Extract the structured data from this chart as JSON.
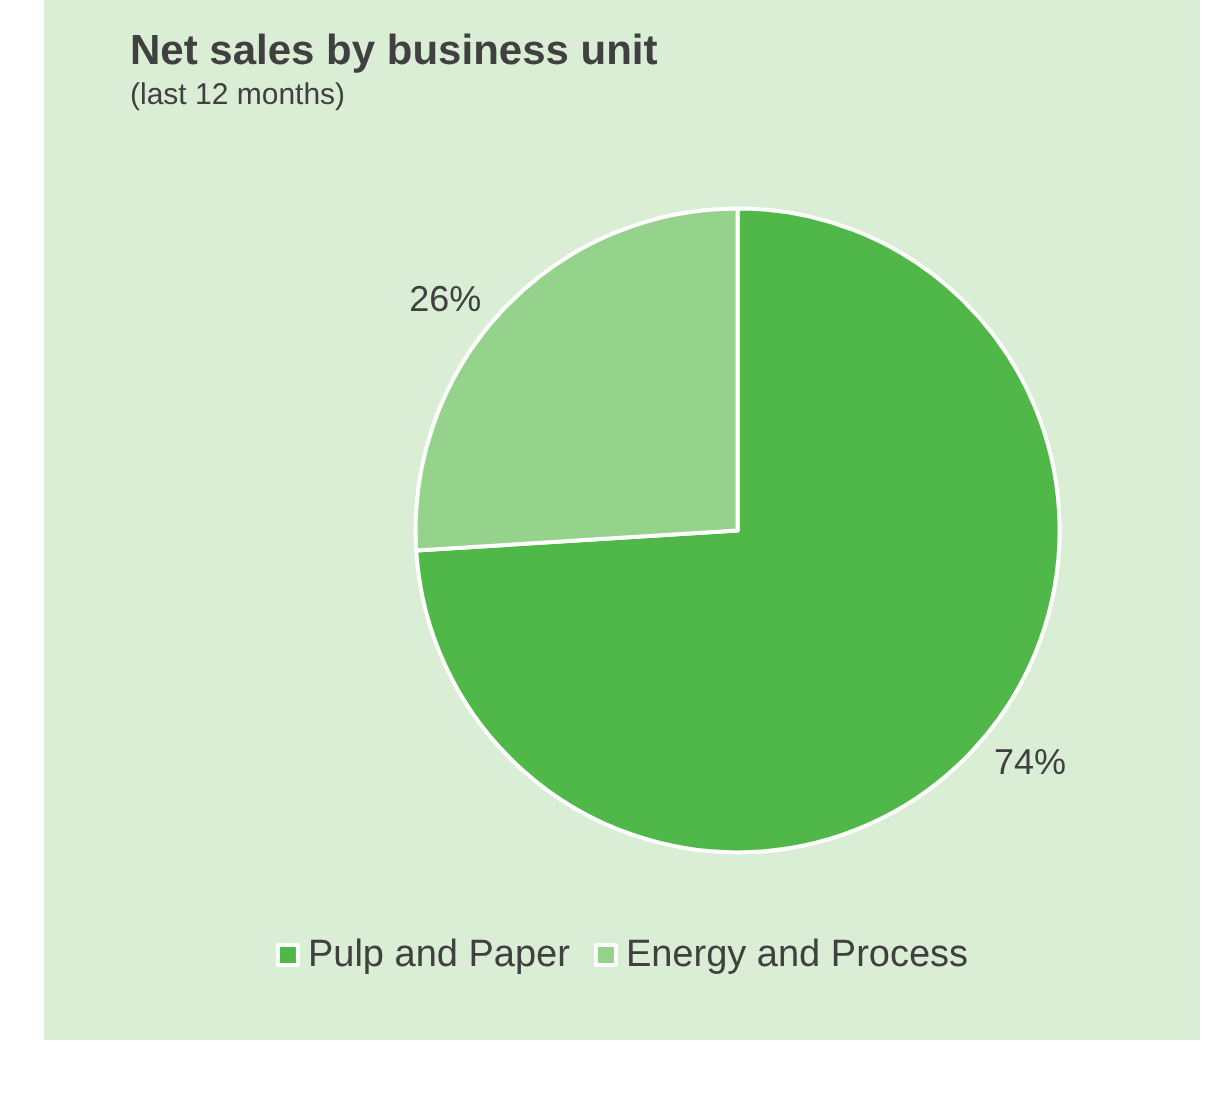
{
  "chart_data": {
    "type": "pie",
    "title": "Net sales by business unit",
    "subtitle": "(last 12 months)",
    "categories": [
      "Pulp and Paper",
      "Energy and Process"
    ],
    "values": [
      74,
      26
    ],
    "colors": [
      "#50b848",
      "#95d28c"
    ],
    "value_labels": [
      "74%",
      "26%"
    ],
    "legend": "bottom"
  }
}
